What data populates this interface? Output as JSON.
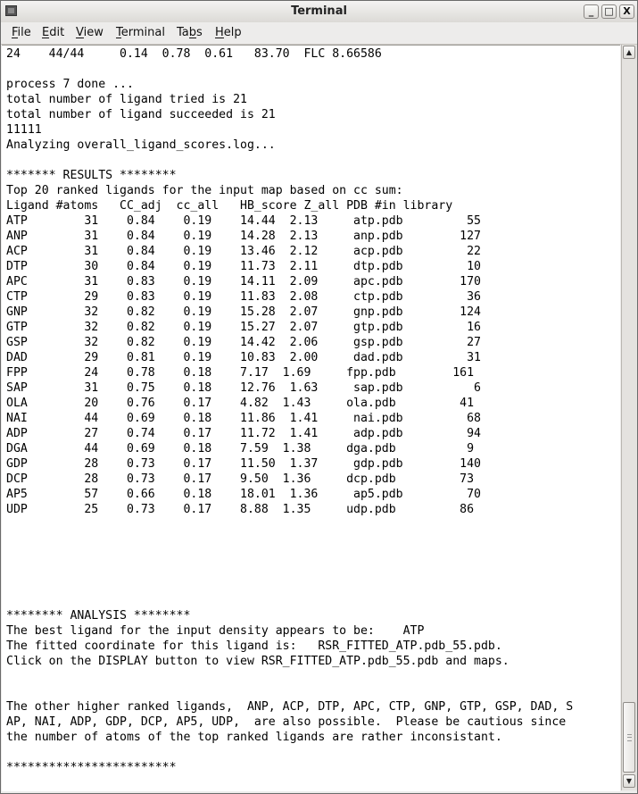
{
  "window": {
    "title": "Terminal",
    "buttons": {
      "minimize": "_",
      "maximize": "□",
      "close": "X"
    }
  },
  "menubar": {
    "items": [
      {
        "label": "File",
        "mnemonic": 0
      },
      {
        "label": "Edit",
        "mnemonic": 0
      },
      {
        "label": "View",
        "mnemonic": 0
      },
      {
        "label": "Terminal",
        "mnemonic": 0
      },
      {
        "label": "Tabs",
        "mnemonic": 2
      },
      {
        "label": "Help",
        "mnemonic": 0
      }
    ]
  },
  "scrollbar": {
    "up_arrow": "▲",
    "down_arrow": "▼",
    "position_percent": 100
  },
  "terminal": {
    "lines": [
      "24    44/44     0.14  0.78  0.61   83.70  FLC 8.66586",
      "",
      "process 7 done ...",
      "total number of ligand tried is 21",
      "total number of ligand succeeded is 21",
      "11111",
      "Analyzing overall_ligand_scores.log...",
      "",
      "******* RESULTS ********",
      "Top 20 ranked ligands for the input map based on cc sum:",
      "Ligand #atoms   CC_adj  cc_all   HB_score Z_all PDB #in library",
      "ATP        31    0.84    0.19    14.44  2.13     atp.pdb         55",
      "ANP        31    0.84    0.19    14.28  2.13     anp.pdb        127",
      "ACP        31    0.84    0.19    13.46  2.12     acp.pdb         22",
      "DTP        30    0.84    0.19    11.73  2.11     dtp.pdb         10",
      "APC        31    0.83    0.19    14.11  2.09     apc.pdb        170",
      "CTP        29    0.83    0.19    11.83  2.08     ctp.pdb         36",
      "GNP        32    0.82    0.19    15.28  2.07     gnp.pdb        124",
      "GTP        32    0.82    0.19    15.27  2.07     gtp.pdb         16",
      "GSP        32    0.82    0.19    14.42  2.06     gsp.pdb         27",
      "DAD        29    0.81    0.19    10.83  2.00     dad.pdb         31",
      "FPP        24    0.78    0.18    7.17  1.69     fpp.pdb        161",
      "SAP        31    0.75    0.18    12.76  1.63     sap.pdb          6",
      "OLA        20    0.76    0.17    4.82  1.43     ola.pdb         41",
      "NAI        44    0.69    0.18    11.86  1.41     nai.pdb         68",
      "ADP        27    0.74    0.17    11.72  1.41     adp.pdb         94",
      "DGA        44    0.69    0.18    7.59  1.38     dga.pdb          9",
      "GDP        28    0.73    0.17    11.50  1.37     gdp.pdb        140",
      "DCP        28    0.73    0.17    9.50  1.36     dcp.pdb         73",
      "AP5        57    0.66    0.18    18.01  1.36     ap5.pdb         70",
      "UDP        25    0.73    0.17    8.88  1.35     udp.pdb         86",
      "",
      "",
      "",
      "",
      "",
      "",
      "******** ANALYSIS ********",
      "The best ligand for the input density appears to be:    ATP",
      "The fitted coordinate for this ligand is:   RSR_FITTED_ATP.pdb_55.pdb.",
      "Click on the DISPLAY button to view RSR_FITTED_ATP.pdb_55.pdb and maps.",
      "",
      "",
      "The other higher ranked ligands,  ANP, ACP, DTP, APC, CTP, GNP, GTP, GSP, DAD, S",
      "AP, NAI, ADP, GDP, DCP, AP5, UDP,  are also possible.  Please be cautious since",
      "the number of atoms of the top ranked ligands are rather inconsistant.",
      "",
      "************************"
    ]
  }
}
